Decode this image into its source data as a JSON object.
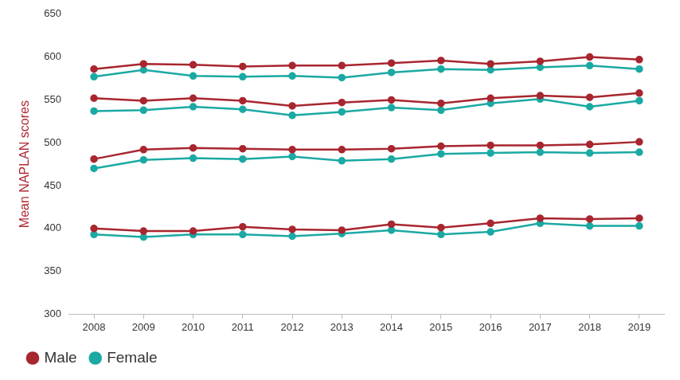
{
  "chart_data": {
    "type": "line",
    "y_label": "Mean NAPLAN scores",
    "categories": [
      "2008",
      "2009",
      "2010",
      "2011",
      "2012",
      "2013",
      "2014",
      "2015",
      "2016",
      "2017",
      "2018",
      "2019"
    ],
    "ylim": [
      300,
      650
    ],
    "yticks": [
      300,
      350,
      400,
      450,
      500,
      550,
      600,
      650
    ],
    "grid": false,
    "legend": "bottom-left",
    "marker": "circle",
    "series": [
      {
        "name": "Male",
        "color": "#a8262f",
        "values": [
          586,
          592,
          591,
          589,
          590,
          590,
          593,
          596,
          592,
          595,
          600,
          597
        ]
      },
      {
        "name": "Female",
        "color": "#1ba9a3",
        "values": [
          577,
          585,
          578,
          577,
          578,
          576,
          582,
          586,
          585,
          588,
          590,
          586
        ]
      },
      {
        "name": "Male",
        "color": "#a8262f",
        "values": [
          552,
          549,
          552,
          549,
          543,
          547,
          550,
          546,
          552,
          555,
          553,
          558
        ]
      },
      {
        "name": "Female",
        "color": "#1ba9a3",
        "values": [
          537,
          538,
          542,
          539,
          532,
          536,
          541,
          538,
          546,
          551,
          542,
          549
        ]
      },
      {
        "name": "Male",
        "color": "#a8262f",
        "values": [
          481,
          492,
          494,
          493,
          492,
          492,
          493,
          496,
          497,
          497,
          498,
          501
        ]
      },
      {
        "name": "Female",
        "color": "#1ba9a3",
        "values": [
          470,
          480,
          482,
          481,
          484,
          479,
          481,
          487,
          488,
          489,
          488,
          489
        ]
      },
      {
        "name": "Male",
        "color": "#a8262f",
        "values": [
          400,
          397,
          397,
          402,
          399,
          398,
          405,
          401,
          406,
          412,
          411,
          412
        ]
      },
      {
        "name": "Female",
        "color": "#1ba9a3",
        "values": [
          393,
          390,
          393,
          393,
          391,
          394,
          398,
          393,
          396,
          406,
          403,
          403
        ]
      }
    ]
  }
}
